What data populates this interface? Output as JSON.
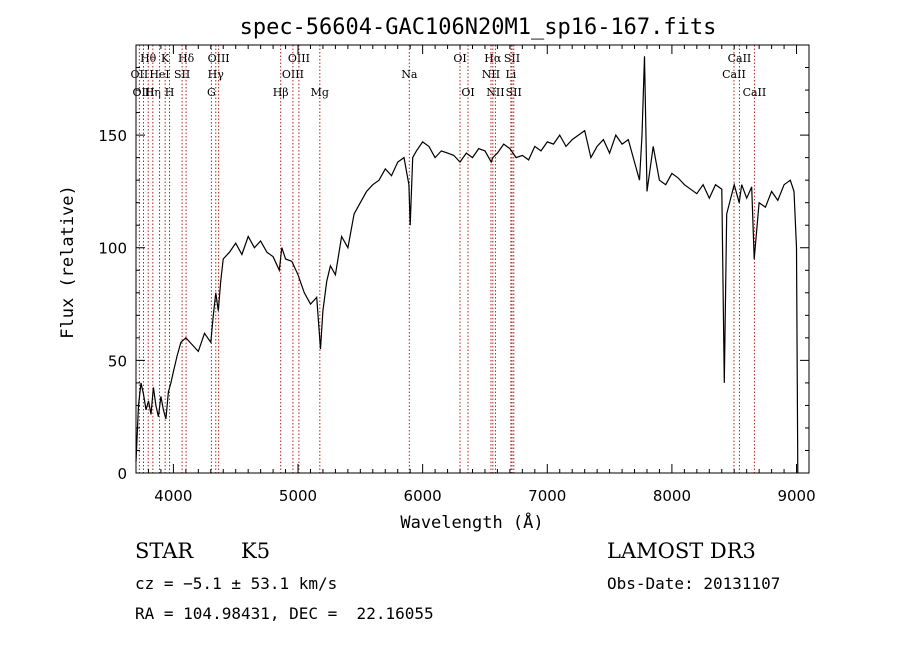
{
  "chart_data": {
    "type": "line",
    "title": "spec-56604-GAC106N20M1_sp16-167.fits",
    "xlabel": "Wavelength (Å)",
    "ylabel": "Flux (relative)",
    "xlim": [
      3700,
      9100
    ],
    "ylim": [
      0,
      190
    ],
    "xticks": [
      4000,
      5000,
      6000,
      7000,
      8000,
      9000
    ],
    "yticks": [
      0,
      50,
      100,
      150
    ],
    "grid": false,
    "line_color": "#000000",
    "marker_color": "#b22222",
    "series": [
      {
        "x": [
          3700,
          3720,
          3740,
          3760,
          3780,
          3800,
          3820,
          3840,
          3860,
          3880,
          3900,
          3920,
          3940,
          3960,
          3980,
          4000,
          4030,
          4060,
          4100,
          4150,
          4200,
          4250,
          4300,
          4320,
          4340,
          4360,
          4380,
          4400,
          4450,
          4500,
          4550,
          4600,
          4650,
          4700,
          4750,
          4800,
          4850,
          4870,
          4900,
          4950,
          5000,
          5050,
          5100,
          5150,
          5180,
          5200,
          5230,
          5260,
          5300,
          5350,
          5400,
          5450,
          5500,
          5550,
          5600,
          5650,
          5700,
          5750,
          5800,
          5850,
          5890,
          5900,
          5920,
          5950,
          6000,
          6050,
          6100,
          6150,
          6200,
          6250,
          6300,
          6350,
          6400,
          6450,
          6500,
          6550,
          6563,
          6600,
          6650,
          6700,
          6750,
          6800,
          6850,
          6900,
          6950,
          7000,
          7050,
          7100,
          7150,
          7200,
          7250,
          7300,
          7350,
          7400,
          7450,
          7500,
          7550,
          7600,
          7650,
          7700,
          7740,
          7760,
          7780,
          7800,
          7850,
          7900,
          7950,
          8000,
          8050,
          8100,
          8150,
          8200,
          8250,
          8300,
          8350,
          8400,
          8420,
          8440,
          8500,
          8540,
          8560,
          8600,
          8640,
          8660,
          8700,
          8750,
          8800,
          8850,
          8900,
          8950,
          8980,
          9000,
          9010
        ],
        "y": [
          5,
          30,
          40,
          35,
          28,
          32,
          26,
          38,
          30,
          25,
          34,
          28,
          24,
          36,
          40,
          45,
          52,
          58,
          60,
          57,
          54,
          62,
          58,
          70,
          80,
          72,
          85,
          95,
          98,
          102,
          97,
          105,
          100,
          103,
          98,
          96,
          90,
          100,
          95,
          94,
          88,
          80,
          75,
          78,
          55,
          72,
          85,
          92,
          88,
          105,
          100,
          115,
          120,
          125,
          128,
          130,
          135,
          132,
          138,
          140,
          128,
          110,
          140,
          143,
          147,
          145,
          140,
          143,
          142,
          141,
          138,
          142,
          140,
          144,
          143,
          138,
          140,
          142,
          146,
          144,
          140,
          141,
          139,
          145,
          143,
          147,
          146,
          150,
          145,
          148,
          150,
          152,
          140,
          145,
          148,
          142,
          150,
          146,
          148,
          138,
          130,
          150,
          185,
          125,
          145,
          130,
          128,
          133,
          131,
          128,
          126,
          124,
          128,
          122,
          128,
          126,
          40,
          115,
          128,
          120,
          128,
          122,
          127,
          95,
          120,
          118,
          125,
          121,
          128,
          130,
          125,
          100,
          0
        ]
      }
    ],
    "lines": [
      {
        "label": "Hθ",
        "x": 3798,
        "row": 1
      },
      {
        "label": "OII",
        "x": 3727,
        "row": 2
      },
      {
        "label": "OIII",
        "x": 3760,
        "row": 3
      },
      {
        "label": "Hη",
        "x": 3835,
        "row": 3
      },
      {
        "label": "HeI",
        "x": 3889,
        "row": 2
      },
      {
        "label": "K",
        "x": 3934,
        "row": 1
      },
      {
        "label": "H",
        "x": 3969,
        "row": 3
      },
      {
        "label": "SII",
        "x": 4070,
        "row": 2
      },
      {
        "label": "Hδ",
        "x": 4102,
        "row": 1
      },
      {
        "label": "OIII",
        "x": 4363,
        "row": 1
      },
      {
        "label": "Hγ",
        "x": 4340,
        "row": 2
      },
      {
        "label": "G",
        "x": 4305,
        "row": 3
      },
      {
        "label": "Hβ",
        "x": 4861,
        "row": 3
      },
      {
        "label": "OIII",
        "x": 4959,
        "row": 2
      },
      {
        "label": "OIII",
        "x": 5007,
        "row": 1
      },
      {
        "label": "Mg",
        "x": 5175,
        "row": 3
      },
      {
        "label": "Na",
        "x": 5893,
        "row": 2
      },
      {
        "label": "OI",
        "x": 6300,
        "row": 1
      },
      {
        "label": "OI",
        "x": 6364,
        "row": 3
      },
      {
        "label": "Hα",
        "x": 6563,
        "row": 1
      },
      {
        "label": "NII",
        "x": 6548,
        "row": 2
      },
      {
        "label": "NII",
        "x": 6584,
        "row": 3
      },
      {
        "label": "SII",
        "x": 6717,
        "row": 1
      },
      {
        "label": "Li",
        "x": 6708,
        "row": 2
      },
      {
        "label": "SII",
        "x": 6731,
        "row": 3
      },
      {
        "label": "CaII",
        "x": 8542,
        "row": 1
      },
      {
        "label": "CaII",
        "x": 8498,
        "row": 2
      },
      {
        "label": "CaII",
        "x": 8662,
        "row": 3
      }
    ]
  },
  "info": {
    "object_class": "STAR",
    "subclass": "K5",
    "survey": "LAMOST DR3",
    "cz": "cz = −5.1 ± 53.1 km/s",
    "obs_date": "Obs-Date: 20131107",
    "coords": "RA = 104.98431, DEC =  22.16055"
  }
}
